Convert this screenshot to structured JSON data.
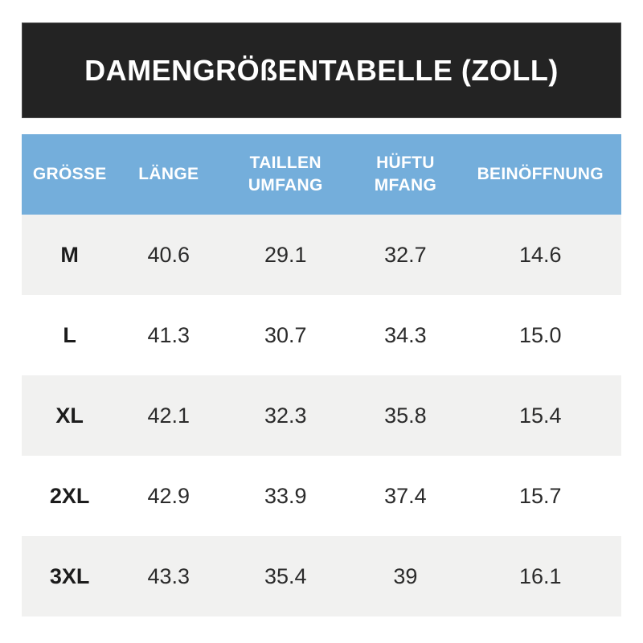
{
  "banner": {
    "title": "DAMENGRÖßENTABELLE (ZOLL)"
  },
  "table": {
    "headers": [
      "GRÖSSE",
      "LÄNGE",
      "TAILLEN\nUMFANG",
      "HÜFTU\nMFANG",
      "BEINÖFFNUNG"
    ],
    "rows": [
      {
        "size": "M",
        "values": [
          "40.6",
          "29.1",
          "32.7",
          "14.6"
        ]
      },
      {
        "size": "L",
        "values": [
          "41.3",
          "30.7",
          "34.3",
          "15.0"
        ]
      },
      {
        "size": "XL",
        "values": [
          "42.1",
          "32.3",
          "35.8",
          "15.4"
        ]
      },
      {
        "size": "2XL",
        "values": [
          "42.9",
          "33.9",
          "37.4",
          "15.7"
        ]
      },
      {
        "size": "3XL",
        "values": [
          "43.3",
          "35.4",
          "39",
          "16.1"
        ]
      }
    ]
  },
  "colors": {
    "banner_bg": "#232323",
    "header_bg": "#74aedb",
    "alt_row_bg": "#f1f1f0",
    "text_dark": "#2b2b2b",
    "text_white": "#ffffff"
  },
  "chart_data": {
    "type": "table",
    "title": "DAMENGRÖßENTABELLE (ZOLL)",
    "columns": [
      "GRÖSSE",
      "LÄNGE",
      "TAILLEN UMFANG",
      "HÜFTU MFANG",
      "BEINÖFFNUNG"
    ],
    "rows": [
      [
        "M",
        40.6,
        29.1,
        32.7,
        14.6
      ],
      [
        "L",
        41.3,
        30.7,
        34.3,
        15.0
      ],
      [
        "XL",
        42.1,
        32.3,
        35.8,
        15.4
      ],
      [
        "2XL",
        42.9,
        33.9,
        37.4,
        15.7
      ],
      [
        "3XL",
        43.3,
        35.4,
        39,
        16.1
      ]
    ]
  }
}
